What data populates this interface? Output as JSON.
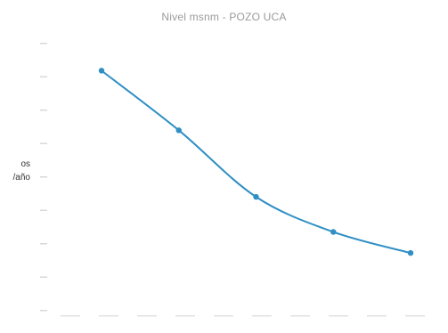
{
  "chart_data": {
    "type": "line",
    "title": "Nivel msnm - POZO UCA",
    "ylabel_lines": [
      "os",
      "/año"
    ],
    "x": [
      1,
      2,
      3,
      4,
      5
    ],
    "series": [
      {
        "values": [
          9.5,
          7.8,
          5.9,
          4.9,
          4.3
        ],
        "color": "#2f8fc4"
      }
    ],
    "ylim": [
      2.5,
      10.5
    ],
    "grid": false,
    "legend": "none"
  }
}
